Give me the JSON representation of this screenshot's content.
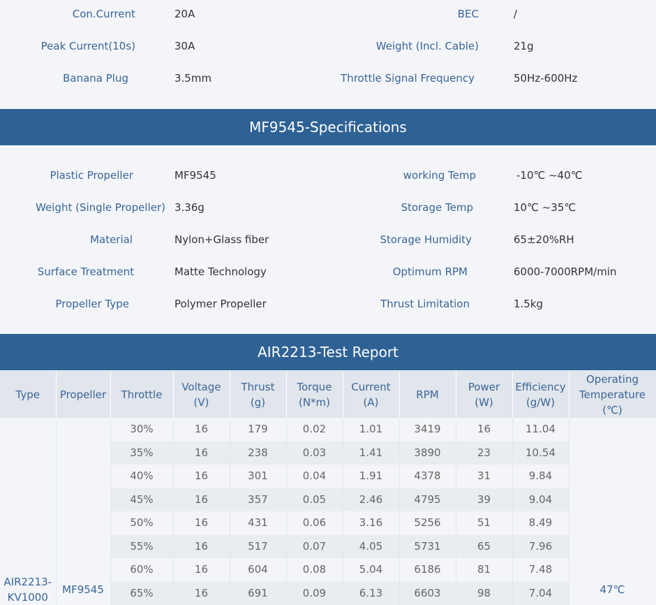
{
  "top_specs": {
    "left": [
      {
        "label": "Con.Current",
        "value": "20A"
      },
      {
        "label": "Peak Current(10s)",
        "value": "30A"
      },
      {
        "label": "Banana Plug",
        "value": "3.5mm"
      }
    ],
    "right": [
      {
        "label": "BEC",
        "value": "/"
      },
      {
        "label": "Weight (Incl. Cable)",
        "value": "21g"
      },
      {
        "label": "Throttle Signal Frequency",
        "value": "50Hz-600Hz"
      }
    ]
  },
  "prop_section": {
    "title": "MF9545-Specifications",
    "left": [
      {
        "label": "Plastic Propeller",
        "value": "MF9545"
      },
      {
        "label": "Weight (Single Propeller)",
        "value": "3.36g"
      },
      {
        "label": "Material",
        "value": "Nylon+Glass fiber"
      },
      {
        "label": "Surface Treatment",
        "value": "Matte Technology"
      },
      {
        "label": "Propeller Type",
        "value": "Polymer Propeller"
      }
    ],
    "right": [
      {
        "label": "working Temp",
        "value": "-10℃ ~40℃"
      },
      {
        "label": "Storage Temp",
        "value": "10℃ ~35℃"
      },
      {
        "label": "Storage Humidity",
        "value": "65±20%RH"
      },
      {
        "label": "Optimum RPM",
        "value": "6000-7000RPM/min"
      },
      {
        "label": "Thrust Limitation",
        "value": "1.5kg"
      }
    ]
  },
  "report": {
    "title": "AIR2213-Test Report",
    "headers": {
      "type": "Type",
      "propeller": "Propeller",
      "throttle": "Throttle",
      "voltage_1": "Voltage",
      "voltage_2": "(V)",
      "thrust_1": "Thrust",
      "thrust_2": "(g)",
      "torque_1": "Torque",
      "torque_2": "(N*m)",
      "current_1": "Current",
      "current_2": "(A)",
      "rpm": "RPM",
      "power_1": "Power",
      "power_2": "(W)",
      "efficiency_1": "Efficiency",
      "efficiency_2": "(g/W)",
      "temp_1": "Operating",
      "temp_2": "Temperature",
      "temp_3": "(℃)"
    },
    "type_value_1": "AIR2213-",
    "type_value_2": "KV1000",
    "propeller_value": "MF9545",
    "temp_value": "47℃",
    "rows": [
      {
        "throttle": "30%",
        "voltage": "16",
        "thrust": "179",
        "torque": "0.02",
        "current": "1.01",
        "rpm": "3419",
        "power": "16",
        "efficiency": "11.04"
      },
      {
        "throttle": "35%",
        "voltage": "16",
        "thrust": "238",
        "torque": "0.03",
        "current": "1.41",
        "rpm": "3890",
        "power": "23",
        "efficiency": "10.54"
      },
      {
        "throttle": "40%",
        "voltage": "16",
        "thrust": "301",
        "torque": "0.04",
        "current": "1.91",
        "rpm": "4378",
        "power": "31",
        "efficiency": "9.84"
      },
      {
        "throttle": "45%",
        "voltage": "16",
        "thrust": "357",
        "torque": "0.05",
        "current": "2.46",
        "rpm": "4795",
        "power": "39",
        "efficiency": "9.04"
      },
      {
        "throttle": "50%",
        "voltage": "16",
        "thrust": "431",
        "torque": "0.06",
        "current": "3.16",
        "rpm": "5256",
        "power": "51",
        "efficiency": "8.49"
      },
      {
        "throttle": "55%",
        "voltage": "16",
        "thrust": "517",
        "torque": "0.07",
        "current": "4.05",
        "rpm": "5731",
        "power": "65",
        "efficiency": "7.96"
      },
      {
        "throttle": "60%",
        "voltage": "16",
        "thrust": "604",
        "torque": "0.08",
        "current": "5.04",
        "rpm": "6186",
        "power": "81",
        "efficiency": "7.48"
      },
      {
        "throttle": "65%",
        "voltage": "16",
        "thrust": "691",
        "torque": "0.09",
        "current": "6.13",
        "rpm": "6603",
        "power": "98",
        "efficiency": "7.04"
      }
    ]
  }
}
